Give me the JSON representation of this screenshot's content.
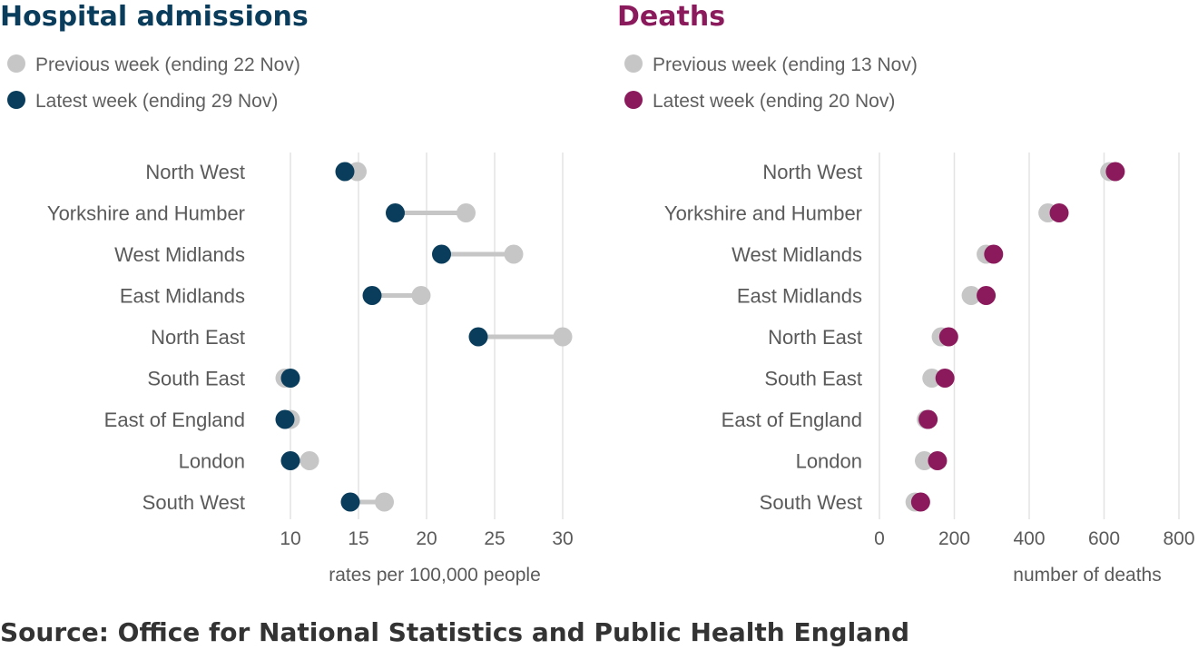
{
  "source": "Source: Office for National Statistics and Public Health England",
  "regions": [
    "North West",
    "Yorkshire and Humber",
    "West Midlands",
    "East Midlands",
    "North East",
    "South East",
    "East of England",
    "London",
    "South West"
  ],
  "colors": {
    "admissions": "#0a3d5c",
    "deaths": "#8b1a5c",
    "previous": "#c6c6c6",
    "grid": "#e3e3e3"
  },
  "chart_data": [
    {
      "type": "dumbbell",
      "title": "Hospital admissions",
      "xlabel": "rates per 100,000 people",
      "ylabel": "",
      "categories": [
        "North West",
        "Yorkshire and Humber",
        "West Midlands",
        "East Midlands",
        "North East",
        "South East",
        "East of England",
        "London",
        "South West"
      ],
      "xlim": [
        10,
        30
      ],
      "xticks": [
        10,
        15,
        20,
        25,
        30
      ],
      "grid": true,
      "legend": "top-left",
      "series": [
        {
          "name": "Previous week (ending 22 Nov)",
          "values": [
            14.9,
            22.9,
            26.4,
            19.6,
            30.0,
            9.6,
            10.0,
            11.4,
            16.9
          ]
        },
        {
          "name": "Latest week (ending 29 Nov)",
          "values": [
            14.0,
            17.7,
            21.1,
            16.0,
            23.8,
            10.0,
            9.6,
            10.0,
            14.4
          ]
        }
      ]
    },
    {
      "type": "dumbbell",
      "title": "Deaths",
      "xlabel": "number of deaths",
      "ylabel": "",
      "categories": [
        "North West",
        "Yorkshire and Humber",
        "West Midlands",
        "East Midlands",
        "North East",
        "South East",
        "East of England",
        "London",
        "South West"
      ],
      "xlim": [
        0,
        800
      ],
      "xticks": [
        0,
        200,
        400,
        600,
        800
      ],
      "grid": true,
      "legend": "top-left",
      "series": [
        {
          "name": "Previous week (ending 13 Nov)",
          "values": [
            615,
            450,
            285,
            245,
            165,
            140,
            125,
            120,
            95
          ]
        },
        {
          "name": "Latest week (ending 20 Nov)",
          "values": [
            630,
            480,
            305,
            285,
            185,
            175,
            130,
            155,
            110
          ]
        }
      ]
    }
  ]
}
